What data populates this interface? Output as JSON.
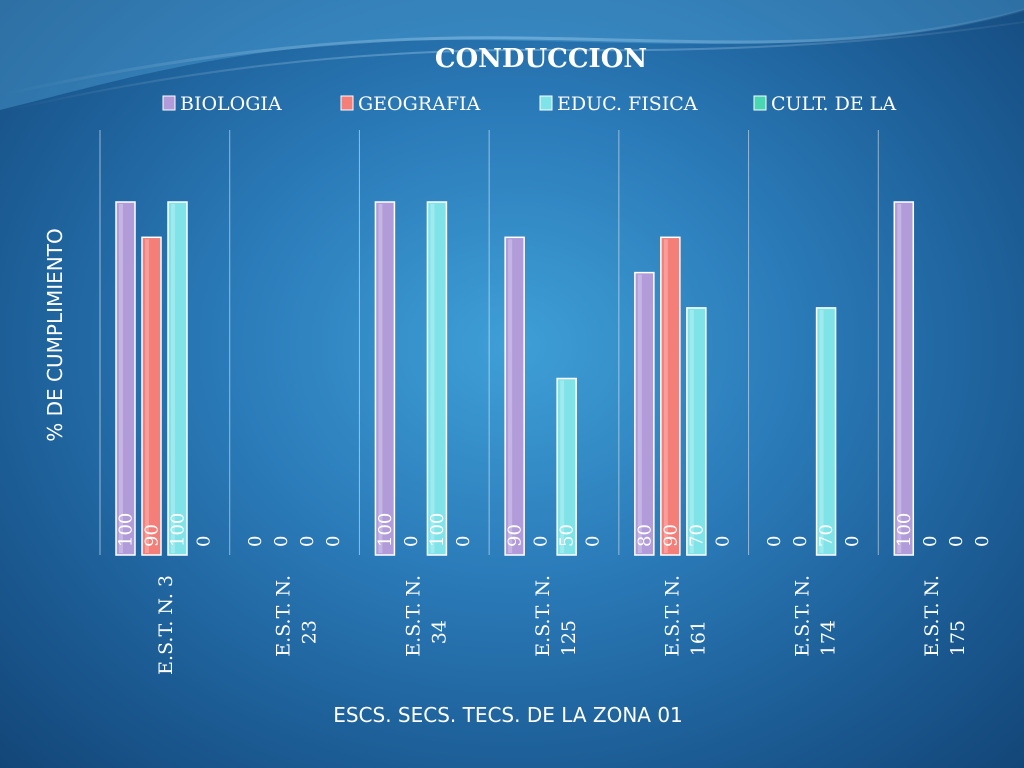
{
  "chart_data": {
    "type": "bar",
    "title": "CONDUCCION",
    "xlabel": "ESCS. SECS. TECS.  DE  LA  ZONA  01",
    "ylabel": "%  DE CUMPLIMIENTO",
    "ylim": [
      0,
      120
    ],
    "grid": false,
    "legend_position": "top",
    "categories": [
      [
        "E.S.T. N. 3"
      ],
      [
        "E.S.T. N.",
        "23"
      ],
      [
        "E.S.T. N.",
        "34"
      ],
      [
        "E.S.T. N.",
        "125"
      ],
      [
        "E.S.T. N.",
        "161"
      ],
      [
        "E.S.T. N.",
        "174"
      ],
      [
        "E.S.T. N.",
        "175"
      ]
    ],
    "series": [
      {
        "name": "BIOLOGIA",
        "color": "#b19cd9",
        "values": [
          100,
          0,
          100,
          90,
          80,
          0,
          100
        ]
      },
      {
        "name": "GEOGRAFIA",
        "color": "#f47e78",
        "values": [
          90,
          0,
          0,
          0,
          90,
          0,
          0
        ]
      },
      {
        "name": "EDUC. FISICA",
        "color": "#7fe3e8",
        "values": [
          100,
          0,
          100,
          50,
          70,
          70,
          0
        ]
      },
      {
        "name": "CULT. DE LA",
        "color": "#49d6b0",
        "values": [
          0,
          0,
          0,
          0,
          0,
          0,
          0
        ]
      }
    ]
  }
}
